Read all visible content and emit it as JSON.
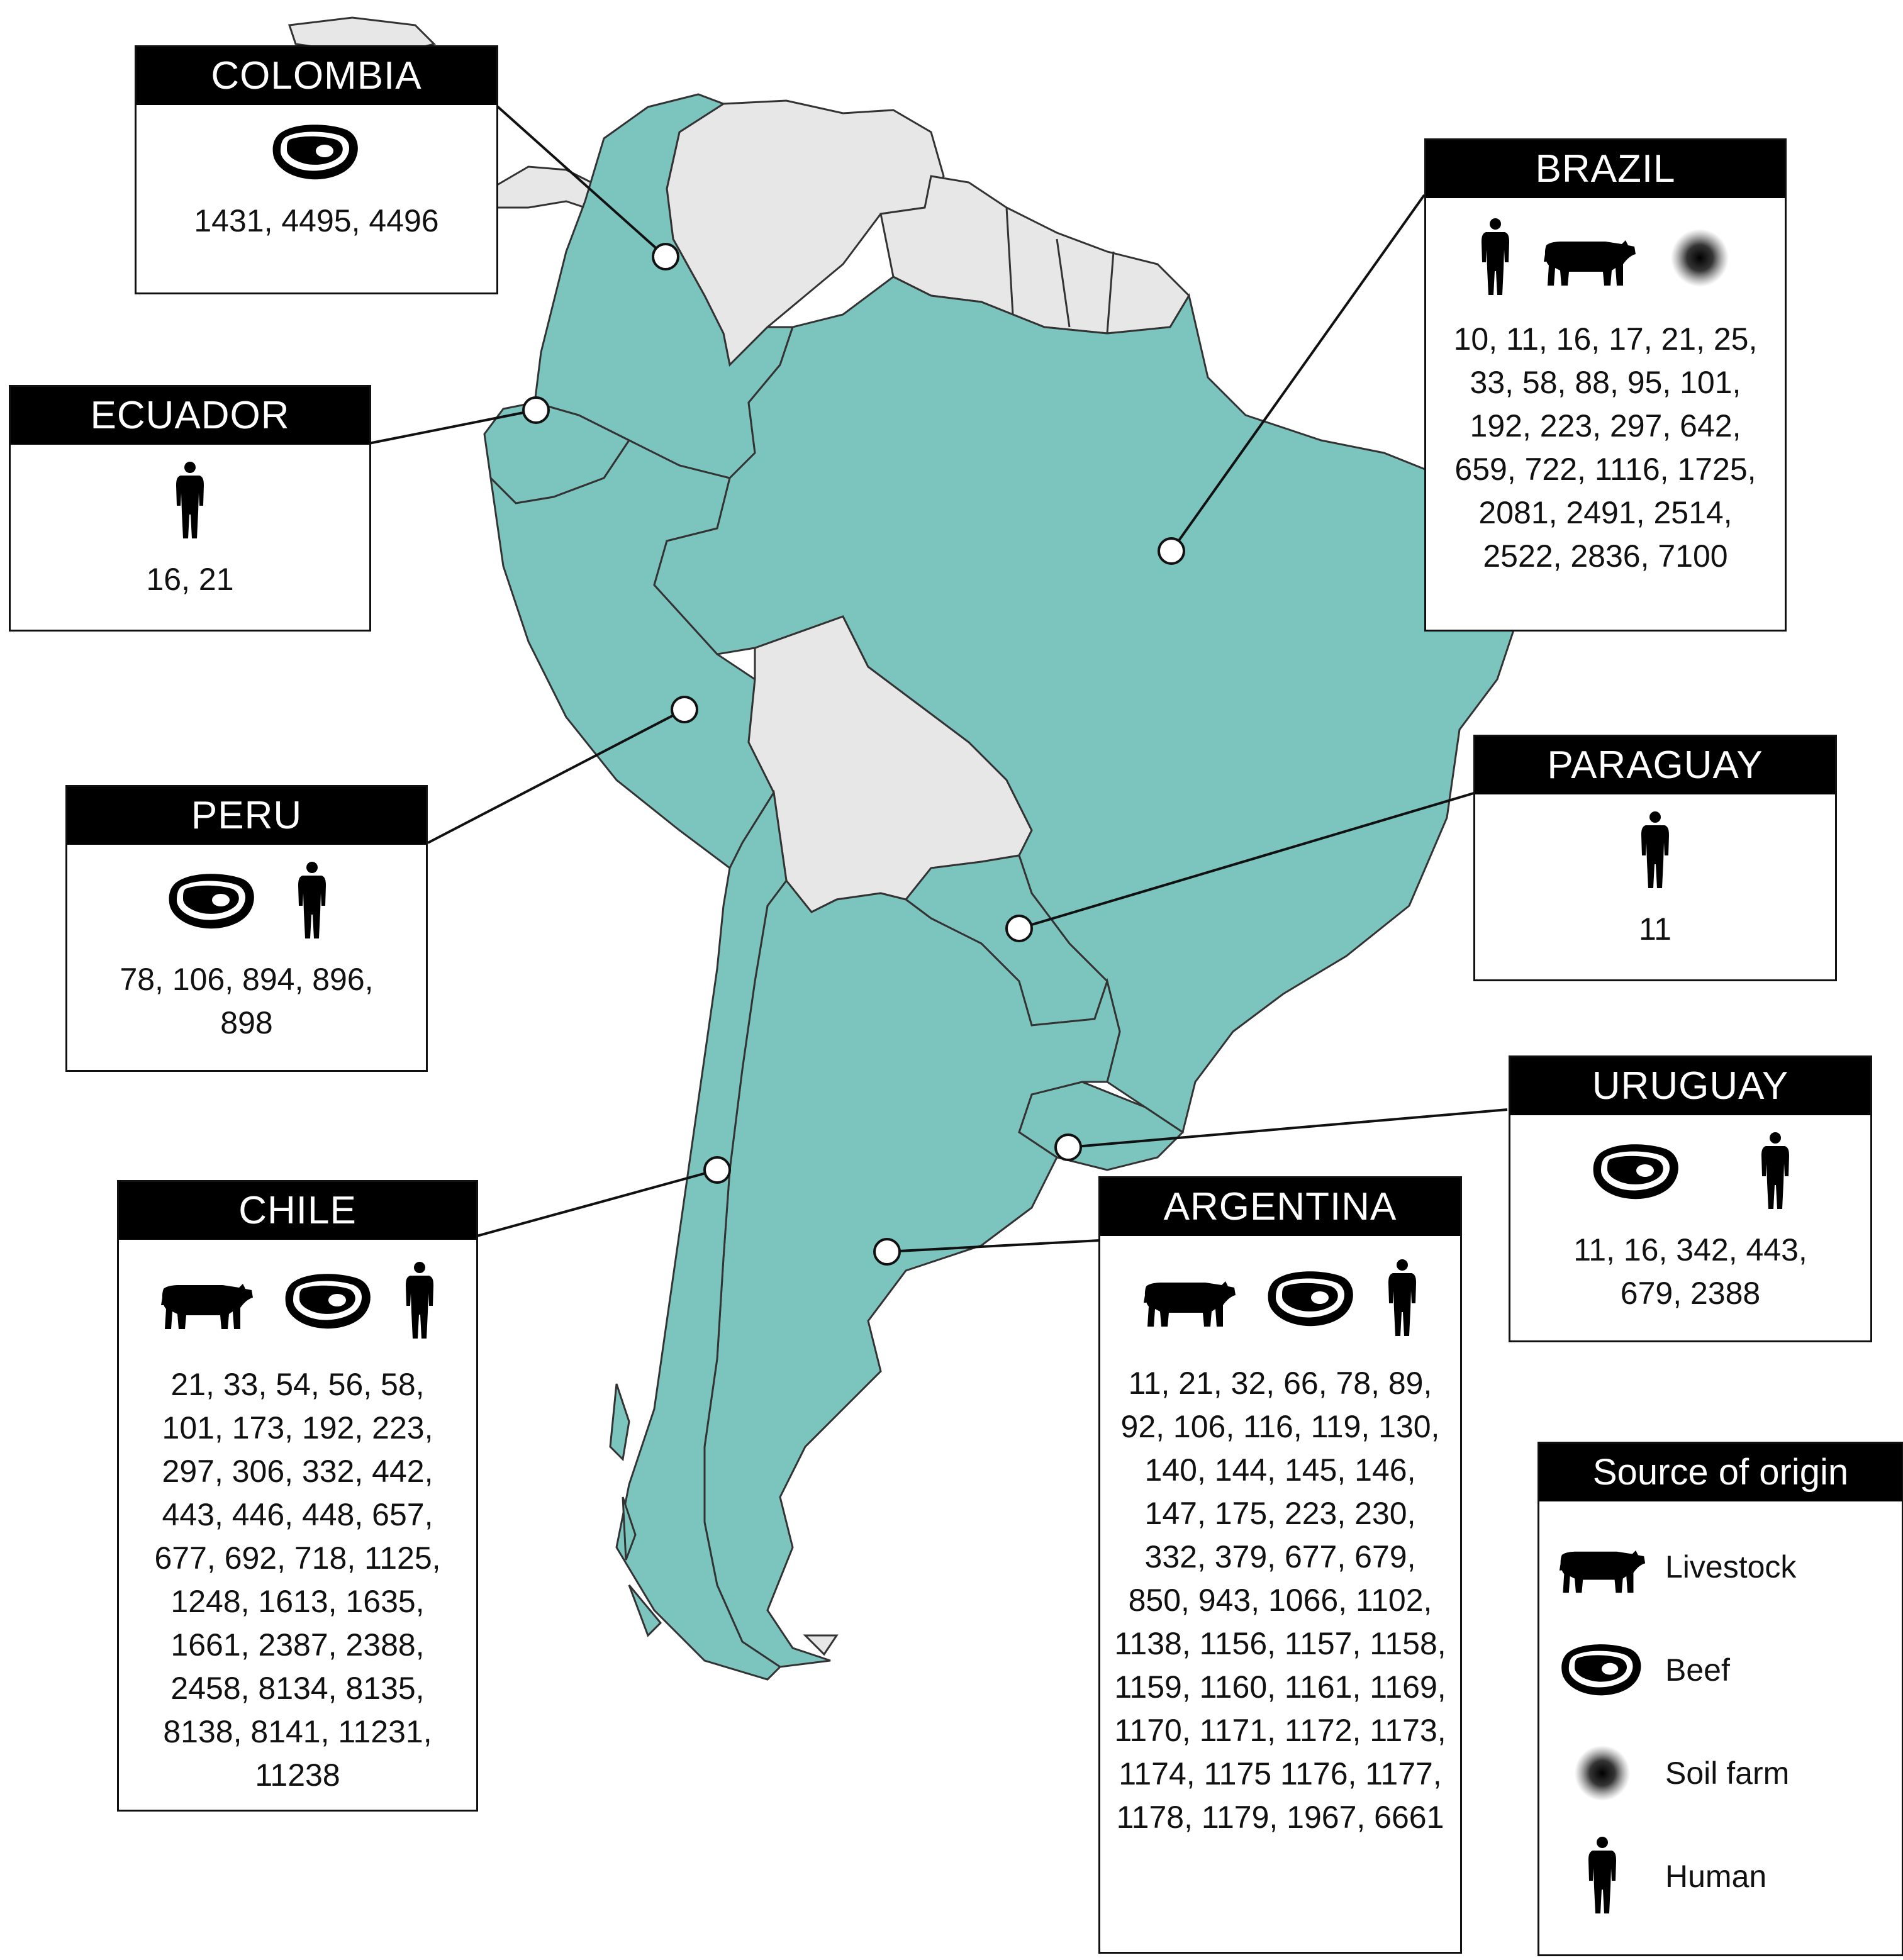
{
  "colors": {
    "highlighted_country": "#7cc5bf",
    "other_country": "#e7e7e7",
    "border": "#333333",
    "header_bg": "#000000",
    "header_text": "#ffffff"
  },
  "countries": [
    {
      "name": "COLOMBIA",
      "sources": [
        "beef-icon"
      ],
      "isolates": "1431, 4495, 4496"
    },
    {
      "name": "ECUADOR",
      "sources": [
        "human-icon"
      ],
      "isolates": "16, 21"
    },
    {
      "name": "PERU",
      "sources": [
        "beef-icon",
        "human-icon"
      ],
      "isolates": "78, 106, 894, 896, 898"
    },
    {
      "name": "CHILE",
      "sources": [
        "livestock-icon",
        "beef-icon",
        "human-icon"
      ],
      "isolates": "21, 33, 54, 56, 58, 101, 173, 192, 223, 297, 306, 332, 442, 443, 446, 448, 657, 677, 692, 718, 1125, 1248, 1613, 1635, 1661, 2387, 2388, 2458, 8134, 8135, 8138, 8141, 11231, 11238"
    },
    {
      "name": "BRAZIL",
      "sources": [
        "human-icon",
        "livestock-icon",
        "soil-farm-icon"
      ],
      "isolates": "10, 11, 16, 17, 21, 25, 33, 58, 88, 95, 101, 192, 223, 297, 642, 659, 722, 1116, 1725, 2081, 2491, 2514, 2522, 2836, 7100"
    },
    {
      "name": "PARAGUAY",
      "sources": [
        "human-icon"
      ],
      "isolates": "11"
    },
    {
      "name": "URUGUAY",
      "sources": [
        "beef-icon",
        "human-icon"
      ],
      "isolates": "11, 16, 342, 443, 679, 2388"
    },
    {
      "name": "ARGENTINA",
      "sources": [
        "livestock-icon",
        "beef-icon",
        "human-icon"
      ],
      "isolates": "11, 21, 32, 66, 78, 89, 92, 106, 116, 119, 130, 140, 144, 145, 146, 147, 175, 223, 230, 332, 379, 677, 679, 850, 943, 1066, 1102, 1138, 1156, 1157, 1158, 1159, 1160, 1161, 1169, 1170, 1171, 1172, 1173, 1174, 1175 1176, 1177, 1178, 1179, 1967, 6661"
    }
  ],
  "legend": {
    "title": "Source of origin",
    "items": [
      {
        "icon": "livestock-icon",
        "label": "Livestock"
      },
      {
        "icon": "beef-icon",
        "label": "Beef"
      },
      {
        "icon": "soil-farm-icon",
        "label": "Soil farm"
      },
      {
        "icon": "human-icon",
        "label": "Human"
      }
    ]
  }
}
